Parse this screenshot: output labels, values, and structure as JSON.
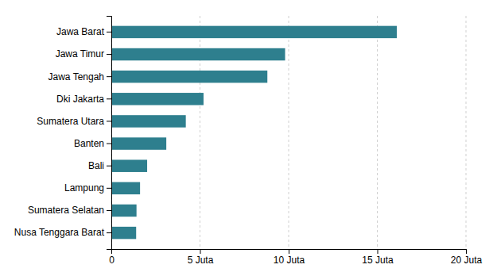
{
  "chart_data": {
    "type": "bar",
    "orientation": "horizontal",
    "categories": [
      "Nusa Tenggara Barat",
      "Sumatera Selatan",
      "Lampung",
      "Bali",
      "Banten",
      "Sumatera Utara",
      "Dki Jakarta",
      "Jawa Tengah",
      "Jawa Timur",
      "Jawa Barat"
    ],
    "values": [
      1.4,
      1.42,
      1.62,
      2.02,
      3.1,
      4.2,
      5.2,
      8.8,
      9.8,
      16.1
    ],
    "color": "#2e7f8e",
    "xlim": [
      0,
      20
    ],
    "xticks": [
      0,
      {
        "value": 5,
        "label": "5 Juta"
      },
      {
        "value": 10,
        "label": "10 Juta"
      },
      {
        "value": 15,
        "label": "15 Juta"
      },
      {
        "value": 20,
        "label": "20 Juta"
      }
    ],
    "grid": true
  }
}
